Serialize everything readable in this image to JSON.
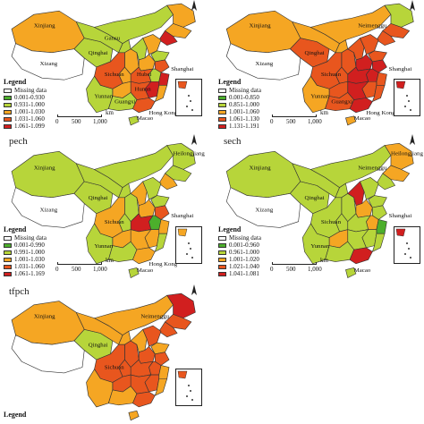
{
  "colors": {
    "missing": "#ffffff",
    "class1": "#4caf2c",
    "class2": "#b7d53a",
    "class3": "#f5a623",
    "class4": "#e8561e",
    "class5": "#d11f1f",
    "border": "#333333",
    "sea": "#ffffff"
  },
  "panels": [
    {
      "id": "effch",
      "title": "",
      "legend_title": "Legend",
      "legend": [
        "Missing data",
        "0.001-0.930",
        "0.931-1.000",
        "1.001-1.030",
        "1.031-1.060",
        "1.061-1.099"
      ],
      "scale": {
        "ticks": [
          "0",
          "500",
          "1,000"
        ],
        "unit": "km"
      },
      "labels": [
        "Xinjiang",
        "Xizang",
        "Qinghai",
        "Gansu",
        "Sichuan",
        "Yunnan",
        "Guangxi",
        "Hubei",
        "Hunan",
        "Shanghai",
        "Hong Kong",
        "Macao"
      ],
      "fills": {
        "xinjiang": 3,
        "xizang": 0,
        "qinghai": 2,
        "gansu": 2,
        "neimenggu": 2,
        "heilongjiang": 3,
        "jilin": 3,
        "liaoning": 5,
        "sichuan": 4,
        "yunnan": 2,
        "guizhou": 3,
        "guangxi": 2,
        "guangdong": 4,
        "hunan": 4,
        "hubei": 4,
        "henan": 3,
        "shandong": 2,
        "jiangsu": 4,
        "zhejiang": 5,
        "fujian": 3,
        "jiangxi": 5,
        "anhui": 2,
        "shaanxi": 3,
        "shanxi": 2,
        "hebei": 3,
        "ningxia": 2,
        "hainan": 2,
        "chongqing": 3
      }
    },
    {
      "id": "tech",
      "title": "",
      "legend_title": "Legend",
      "legend": [
        "Missing data",
        "0.001-0.850",
        "0.851-1.000",
        "1.001-1.060",
        "1.061-1.130",
        "1.131-1.191"
      ],
      "scale": {
        "ticks": [
          "0",
          "500",
          "1,000"
        ],
        "unit": "km"
      },
      "labels": [
        "Xinjiang",
        "Neimenggu",
        "Qinghai",
        "Xizang",
        "Sichuan",
        "Yunnan",
        "Guangxi",
        "Shanghai",
        "Hong Kong",
        "Macao"
      ],
      "fills": {
        "xinjiang": 3,
        "xizang": 0,
        "qinghai": 4,
        "gansu": 3,
        "neimenggu": 3,
        "heilongjiang": 2,
        "jilin": 4,
        "liaoning": 4,
        "sichuan": 4,
        "yunnan": 3,
        "guizhou": 4,
        "guangxi": 4,
        "guangdong": 5,
        "hunan": 5,
        "hubei": 5,
        "henan": 5,
        "shandong": 4,
        "jiangsu": 5,
        "zhejiang": 4,
        "fujian": 4,
        "jiangxi": 4,
        "anhui": 5,
        "shaanxi": 4,
        "shanxi": 4,
        "hebei": 4,
        "ningxia": 3,
        "hainan": 3,
        "chongqing": 4
      }
    },
    {
      "id": "pech",
      "title": "pech",
      "legend_title": "Legend",
      "legend": [
        "Missing data",
        "0.001-0.990",
        "0.991-1.000",
        "1.001-1.030",
        "1.031-1.060",
        "1.061-1.169"
      ],
      "scale": {
        "ticks": [
          "0",
          "500",
          "1,000"
        ],
        "unit": "km"
      },
      "labels": [
        "Xinjiang",
        "Xizang",
        "Qinghai",
        "Heilongjiang",
        "Sichuan",
        "Yunnan",
        "Shanghai",
        "Hong Kong",
        "Macao"
      ],
      "fills": {
        "xinjiang": 2,
        "xizang": 0,
        "qinghai": 2,
        "gansu": 2,
        "neimenggu": 2,
        "heilongjiang": 2,
        "jilin": 2,
        "liaoning": 3,
        "sichuan": 3,
        "yunnan": 2,
        "guizhou": 3,
        "guangxi": 2,
        "guangdong": 3,
        "hunan": 3,
        "hubei": 5,
        "henan": 3,
        "shandong": 2,
        "jiangsu": 4,
        "zhejiang": 3,
        "fujian": 2,
        "jiangxi": 3,
        "anhui": 1,
        "shaanxi": 2,
        "shanxi": 3,
        "hebei": 2,
        "ningxia": 2,
        "hainan": 2,
        "chongqing": 2
      }
    },
    {
      "id": "sech",
      "title": "sech",
      "legend_title": "Legend",
      "legend": [
        "Missing data",
        "0.001-0.960",
        "0.961-1.000",
        "1.001-1.020",
        "1.021-1.040",
        "1.041-1.081"
      ],
      "scale": {
        "ticks": [
          "0",
          "500",
          "1,000"
        ],
        "unit": "km"
      },
      "labels": [
        "Xinjiang",
        "Xizang",
        "Qinghai",
        "Heilongjiang",
        "Neimenggu",
        "Sichuan",
        "Yunnan",
        "Shanghai",
        "Macao"
      ],
      "fills": {
        "xinjiang": 2,
        "xizang": 0,
        "qinghai": 2,
        "gansu": 2,
        "neimenggu": 2,
        "heilongjiang": 3,
        "jilin": 3,
        "liaoning": 2,
        "sichuan": 2,
        "yunnan": 2,
        "guizhou": 3,
        "guangxi": 2,
        "guangdong": 5,
        "hunan": 2,
        "hubei": 2,
        "henan": 3,
        "shandong": 2,
        "jiangsu": 2,
        "zhejiang": 1,
        "fujian": 2,
        "jiangxi": 2,
        "anhui": 3,
        "shaanxi": 2,
        "shanxi": 5,
        "hebei": 2,
        "ningxia": 2,
        "hainan": 2,
        "chongqing": 2
      }
    },
    {
      "id": "tfpch",
      "title": "tfpch",
      "legend_title": "Legend",
      "legend": [],
      "scale": {
        "ticks": [],
        "unit": ""
      },
      "labels": [
        "Xinjiang",
        "Qinghai",
        "Sichuan",
        "Neimenggu"
      ],
      "fills": {
        "xinjiang": 3,
        "xizang": 0,
        "qinghai": 2,
        "gansu": 3,
        "neimenggu": 3,
        "heilongjiang": 5,
        "jilin": 4,
        "liaoning": 4,
        "sichuan": 4,
        "yunnan": 3,
        "guizhou": 4,
        "guangxi": 3,
        "guangdong": 4,
        "hunan": 4,
        "hubei": 4,
        "henan": 4,
        "shandong": 3,
        "jiangsu": 4,
        "zhejiang": 3,
        "fujian": 3,
        "jiangxi": 4,
        "anhui": 4,
        "shaanxi": 4,
        "shanxi": 3,
        "hebei": 4,
        "ningxia": 3,
        "hainan": 3,
        "chongqing": 4
      }
    }
  ]
}
